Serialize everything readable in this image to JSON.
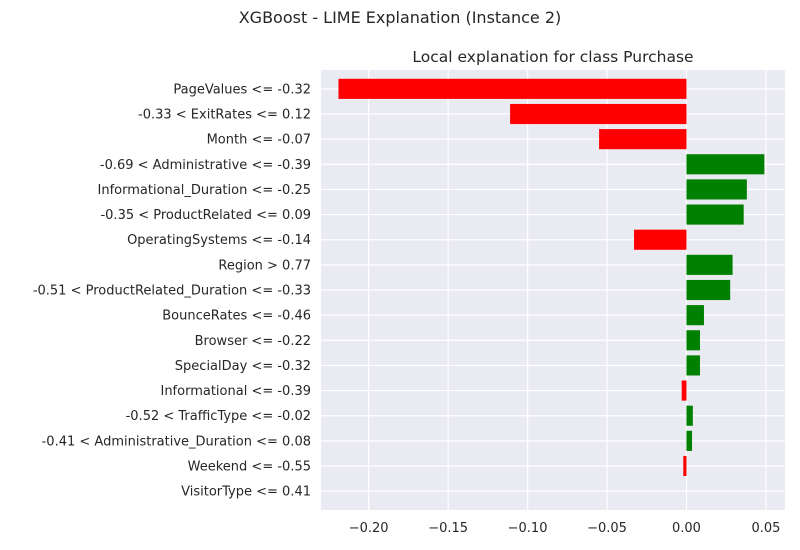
{
  "suptitle": "XGBoost - LIME Explanation (Instance 2)",
  "chart_data": {
    "type": "bar",
    "orientation": "horizontal",
    "title": "Local explanation for class Purchase",
    "xlabel": "",
    "ylabel": "",
    "xlim": [
      -0.23,
      0.062
    ],
    "xticks": [
      -0.2,
      -0.15,
      -0.1,
      -0.05,
      0.0,
      0.05
    ],
    "xtick_labels": [
      "−0.20",
      "−0.15",
      "−0.10",
      "−0.05",
      "0.00",
      "0.05"
    ],
    "grid": true,
    "positive_color": "#008000",
    "negative_color": "#ff0000",
    "categories": [
      "PageValues <= -0.32",
      "-0.33 < ExitRates <= 0.12",
      "Month <= -0.07",
      "-0.69 < Administrative <= -0.39",
      "Informational_Duration <= -0.25",
      "-0.35 < ProductRelated <= 0.09",
      "OperatingSystems <= -0.14",
      "Region > 0.77",
      "-0.51 < ProductRelated_Duration <= -0.33",
      "BounceRates <= -0.46",
      "Browser <= -0.22",
      "SpecialDay <= -0.32",
      "Informational <= -0.39",
      "-0.52 < TrafficType <= -0.02",
      "-0.41 < Administrative_Duration <= 0.08",
      "Weekend <= -0.55",
      "VisitorType <= 0.41"
    ],
    "values": [
      -0.219,
      -0.111,
      -0.055,
      0.049,
      0.038,
      0.036,
      -0.033,
      0.029,
      0.0275,
      0.011,
      0.0085,
      0.0085,
      -0.003,
      0.004,
      0.0035,
      -0.002,
      0.0
    ]
  }
}
